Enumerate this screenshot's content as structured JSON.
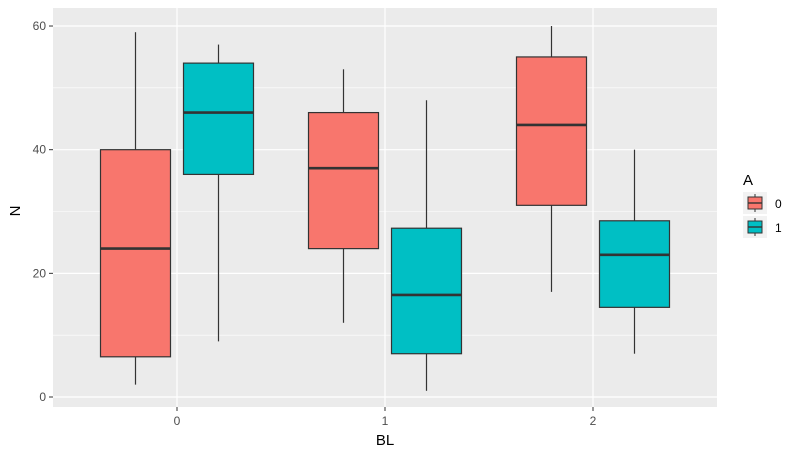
{
  "chart_data": {
    "type": "boxplot",
    "title": "",
    "xlabel": "BL",
    "ylabel": "N",
    "categories": [
      "0",
      "1",
      "2"
    ],
    "ylim": [
      -1.5,
      62.5
    ],
    "yticks": [
      0,
      20,
      40,
      60
    ],
    "grid": true,
    "legend": {
      "title": "A",
      "position": "right",
      "entries": [
        "0",
        "1"
      ]
    },
    "series": [
      {
        "name": "0",
        "color": "#F8766D",
        "boxes": [
          {
            "category": "0",
            "whisker_low": 2,
            "q1": 6.5,
            "median": 24,
            "q3": 40,
            "whisker_high": 59
          },
          {
            "category": "1",
            "whisker_low": 12,
            "q1": 24,
            "median": 37,
            "q3": 46,
            "whisker_high": 53
          },
          {
            "category": "2",
            "whisker_low": 17,
            "q1": 31,
            "median": 44,
            "q3": 55,
            "whisker_high": 60
          }
        ]
      },
      {
        "name": "1",
        "color": "#00BFC4",
        "boxes": [
          {
            "category": "0",
            "whisker_low": 9,
            "q1": 36,
            "median": 46,
            "q3": 54,
            "whisker_high": 57
          },
          {
            "category": "1",
            "whisker_low": 1,
            "q1": 7,
            "median": 16.5,
            "q3": 27.3,
            "whisker_high": 48
          },
          {
            "category": "2",
            "whisker_low": 7,
            "q1": 14.5,
            "median": 23,
            "q3": 28.5,
            "whisker_high": 40
          }
        ]
      }
    ]
  },
  "axes": {
    "x": {
      "label": "BL",
      "ticks": [
        "0",
        "1",
        "2"
      ]
    },
    "y": {
      "label": "N",
      "ticks": [
        "0",
        "20",
        "40",
        "60"
      ]
    }
  },
  "legend": {
    "title": "A",
    "items": [
      {
        "label": "0",
        "color": "#F8766D"
      },
      {
        "label": "1",
        "color": "#00BFC4"
      }
    ]
  },
  "style": {
    "panel_bg": "#EBEBEB",
    "grid_color": "#FFFFFF",
    "outline_color": "#333333",
    "text_color": "#4D4D4D"
  }
}
